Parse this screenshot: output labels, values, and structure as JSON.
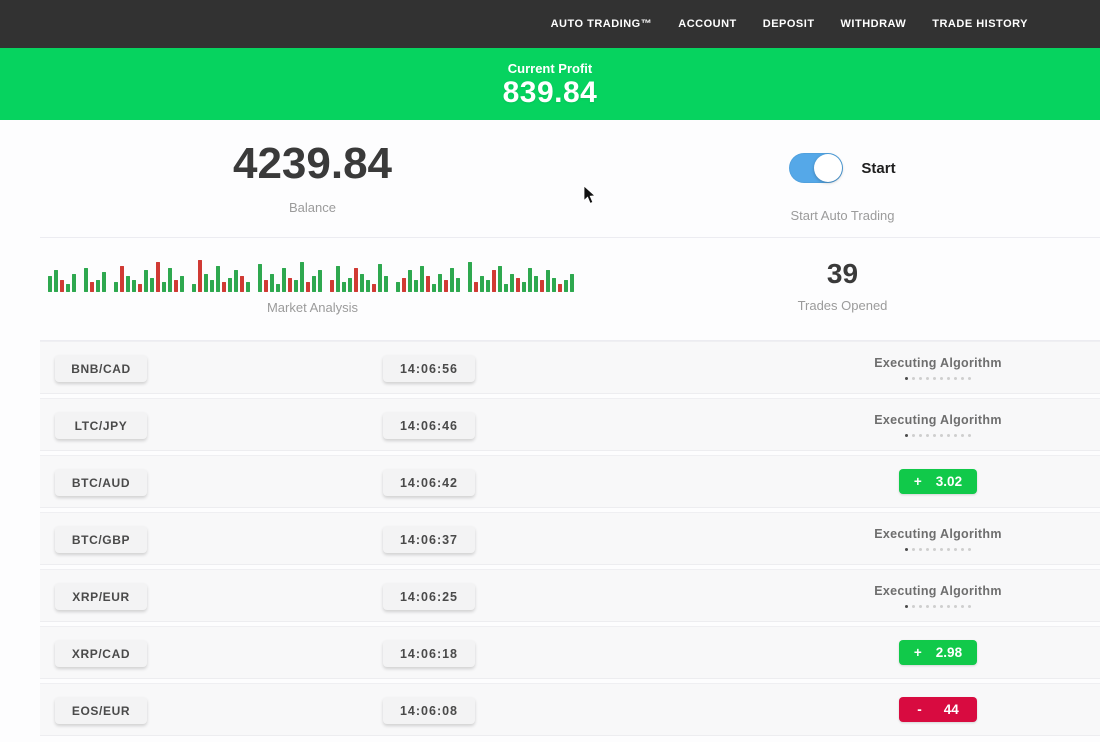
{
  "nav": {
    "items": [
      "AUTO TRADING™",
      "ACCOUNT",
      "DEPOSIT",
      "WITHDRAW",
      "TRADE HISTORY"
    ]
  },
  "profit_banner": {
    "label": "Current Profit",
    "value": "839.84"
  },
  "account": {
    "balance": "4239.84",
    "balance_label": "Balance",
    "toggle_label": "Start",
    "toggle_caption": "Start Auto Trading",
    "toggle_on": true
  },
  "market": {
    "label": "Market Analysis",
    "trades_opened": "39",
    "trades_opened_label": "Trades Opened"
  },
  "chart_data": {
    "type": "bar",
    "title": "Market Analysis",
    "note": "mini candlestick-style strip; values are pixel heights, color g=up r=down, w=gap",
    "bars": [
      [
        "g",
        16
      ],
      [
        "g",
        22
      ],
      [
        "r",
        12
      ],
      [
        "g",
        8
      ],
      [
        "g",
        18
      ],
      [
        "w",
        0
      ],
      [
        "g",
        24
      ],
      [
        "r",
        10
      ],
      [
        "g",
        12
      ],
      [
        "g",
        20
      ],
      [
        "w",
        0
      ],
      [
        "g",
        10
      ],
      [
        "r",
        26
      ],
      [
        "g",
        16
      ],
      [
        "g",
        12
      ],
      [
        "r",
        8
      ],
      [
        "g",
        22
      ],
      [
        "g",
        14
      ],
      [
        "r",
        30
      ],
      [
        "g",
        10
      ],
      [
        "g",
        24
      ],
      [
        "r",
        12
      ],
      [
        "g",
        16
      ],
      [
        "w",
        0
      ],
      [
        "g",
        8
      ],
      [
        "r",
        32
      ],
      [
        "g",
        18
      ],
      [
        "g",
        12
      ],
      [
        "g",
        26
      ],
      [
        "r",
        10
      ],
      [
        "g",
        14
      ],
      [
        "g",
        22
      ],
      [
        "r",
        16
      ],
      [
        "g",
        10
      ],
      [
        "w",
        0
      ],
      [
        "g",
        28
      ],
      [
        "r",
        12
      ],
      [
        "g",
        18
      ],
      [
        "g",
        8
      ],
      [
        "g",
        24
      ],
      [
        "r",
        14
      ],
      [
        "g",
        12
      ],
      [
        "g",
        30
      ],
      [
        "r",
        10
      ],
      [
        "g",
        16
      ],
      [
        "g",
        22
      ],
      [
        "w",
        0
      ],
      [
        "r",
        12
      ],
      [
        "g",
        26
      ],
      [
        "g",
        10
      ],
      [
        "g",
        14
      ],
      [
        "r",
        24
      ],
      [
        "g",
        18
      ],
      [
        "g",
        12
      ],
      [
        "r",
        8
      ],
      [
        "g",
        28
      ],
      [
        "g",
        16
      ],
      [
        "w",
        0
      ],
      [
        "g",
        10
      ],
      [
        "r",
        14
      ],
      [
        "g",
        22
      ],
      [
        "g",
        12
      ],
      [
        "g",
        26
      ],
      [
        "r",
        16
      ],
      [
        "g",
        8
      ],
      [
        "g",
        18
      ],
      [
        "r",
        12
      ],
      [
        "g",
        24
      ],
      [
        "g",
        14
      ],
      [
        "w",
        0
      ],
      [
        "g",
        30
      ],
      [
        "r",
        10
      ],
      [
        "g",
        16
      ],
      [
        "g",
        12
      ],
      [
        "r",
        22
      ],
      [
        "g",
        26
      ],
      [
        "g",
        8
      ],
      [
        "g",
        18
      ],
      [
        "r",
        14
      ],
      [
        "g",
        10
      ],
      [
        "g",
        24
      ],
      [
        "g",
        16
      ],
      [
        "r",
        12
      ],
      [
        "g",
        22
      ],
      [
        "g",
        14
      ],
      [
        "r",
        8
      ],
      [
        "g",
        12
      ],
      [
        "g",
        18
      ]
    ]
  },
  "trades_meta": {
    "executing_label": "Executing Algorithm",
    "executing_dots": 10
  },
  "trades": [
    {
      "pair": "BNB/CAD",
      "time": "14:06:56",
      "status": "executing"
    },
    {
      "pair": "LTC/JPY",
      "time": "14:06:46",
      "status": "executing"
    },
    {
      "pair": "BTC/AUD",
      "time": "14:06:42",
      "status": "result",
      "sign": "+",
      "amount": "3.02"
    },
    {
      "pair": "BTC/GBP",
      "time": "14:06:37",
      "status": "executing"
    },
    {
      "pair": "XRP/EUR",
      "time": "14:06:25",
      "status": "executing"
    },
    {
      "pair": "XRP/CAD",
      "time": "14:06:18",
      "status": "result",
      "sign": "+",
      "amount": "2.98"
    },
    {
      "pair": "EOS/EUR",
      "time": "14:06:08",
      "status": "result",
      "sign": "-",
      "amount": "44"
    }
  ],
  "colors": {
    "nav_bg": "#323232",
    "banner_green": "#06d35f",
    "result_green": "#11c94a",
    "result_red": "#d80b40",
    "toggle_blue": "#55a8e8"
  }
}
